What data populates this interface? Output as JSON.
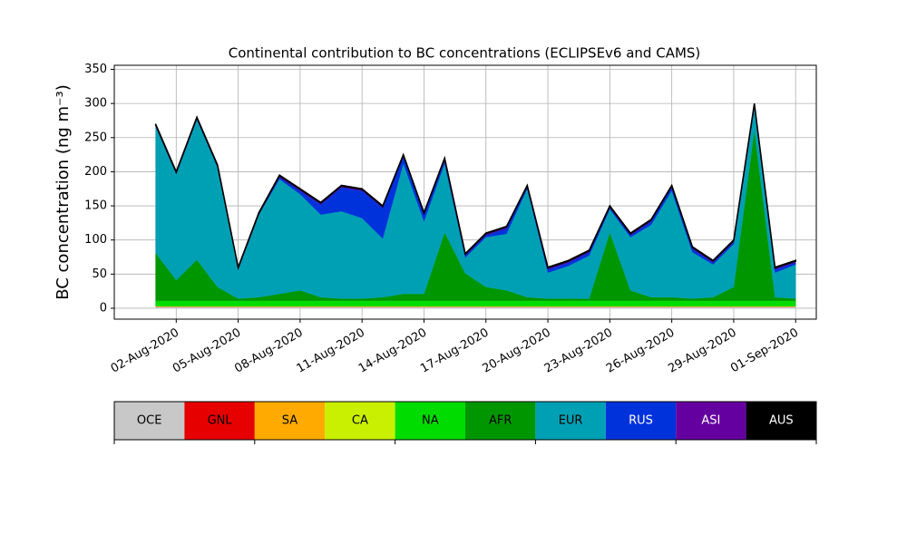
{
  "chart_data": {
    "type": "stacked_area",
    "title": "Continental contribution to BC concentrations (ECLIPSEv6 and CAMS)",
    "y_label": "BC concentration (ng m⁻³)",
    "x": [
      "2020-08-01",
      "2020-08-02",
      "2020-08-03",
      "2020-08-04",
      "2020-08-05",
      "2020-08-06",
      "2020-08-07",
      "2020-08-08",
      "2020-08-09",
      "2020-08-10",
      "2020-08-11",
      "2020-08-12",
      "2020-08-13",
      "2020-08-14",
      "2020-08-15",
      "2020-08-16",
      "2020-08-17",
      "2020-08-18",
      "2020-08-19",
      "2020-08-20",
      "2020-08-21",
      "2020-08-22",
      "2020-08-23",
      "2020-08-24",
      "2020-08-25",
      "2020-08-26",
      "2020-08-27",
      "2020-08-28",
      "2020-08-29",
      "2020-08-30",
      "2020-08-31",
      "2020-09-01"
    ],
    "xlim": [
      "2020-07-30",
      "2020-09-02"
    ],
    "xticks": [
      {
        "value": "2020-08-02",
        "label": "02-Aug-2020"
      },
      {
        "value": "2020-08-05",
        "label": "05-Aug-2020"
      },
      {
        "value": "2020-08-08",
        "label": "08-Aug-2020"
      },
      {
        "value": "2020-08-11",
        "label": "11-Aug-2020"
      },
      {
        "value": "2020-08-14",
        "label": "14-Aug-2020"
      },
      {
        "value": "2020-08-17",
        "label": "17-Aug-2020"
      },
      {
        "value": "2020-08-20",
        "label": "20-Aug-2020"
      },
      {
        "value": "2020-08-23",
        "label": "23-Aug-2020"
      },
      {
        "value": "2020-08-26",
        "label": "26-Aug-2020"
      },
      {
        "value": "2020-08-29",
        "label": "29-Aug-2020"
      },
      {
        "value": "2020-09-01",
        "label": "01-Sep-2020"
      }
    ],
    "ylim": [
      -16,
      356
    ],
    "yticks": [
      0,
      50,
      100,
      150,
      200,
      250,
      300,
      350
    ],
    "grid": true,
    "series": [
      {
        "name": "OCE",
        "color": "#c8c8c8",
        "values": [
          2,
          2,
          2,
          2,
          2,
          2,
          2,
          2,
          2,
          2,
          2,
          2,
          2,
          2,
          2,
          2,
          2,
          2,
          2,
          2,
          2,
          2,
          2,
          2,
          2,
          2,
          2,
          2,
          2,
          2,
          2,
          2
        ]
      },
      {
        "name": "GNL",
        "color": "#e60000",
        "values": [
          0.3,
          0.3,
          0.3,
          0.3,
          0.3,
          0.3,
          0.3,
          0.3,
          0.3,
          0.3,
          0.3,
          0.3,
          0.3,
          0.3,
          0.3,
          0.3,
          0.3,
          0.3,
          0.3,
          0.3,
          0.3,
          0.3,
          0.3,
          0.3,
          0.3,
          0.3,
          0.3,
          0.3,
          0.3,
          0.3,
          0.3,
          0.3
        ]
      },
      {
        "name": "SA",
        "color": "#ffaa00",
        "values": [
          0.3,
          0.3,
          0.3,
          0.3,
          0.3,
          0.3,
          0.3,
          0.3,
          0.3,
          0.3,
          0.3,
          0.3,
          0.3,
          0.3,
          0.3,
          0.3,
          0.3,
          0.3,
          0.3,
          0.3,
          0.3,
          0.3,
          0.3,
          0.3,
          0.3,
          0.3,
          0.3,
          0.3,
          0.3,
          0.3,
          0.3,
          0.3
        ]
      },
      {
        "name": "CA",
        "color": "#c8f000",
        "values": [
          0.5,
          0.5,
          0.5,
          0.5,
          0.5,
          0.5,
          0.5,
          0.5,
          0.5,
          0.5,
          0.5,
          0.5,
          0.5,
          0.5,
          0.5,
          0.5,
          0.5,
          0.5,
          0.5,
          0.5,
          0.5,
          0.5,
          0.5,
          0.5,
          0.5,
          0.5,
          0.5,
          0.5,
          0.5,
          0.5,
          0.5,
          0.5
        ]
      },
      {
        "name": "NA",
        "color": "#00dc00",
        "values": [
          8,
          8,
          8,
          8,
          8,
          8,
          8,
          8,
          8,
          8,
          8,
          8,
          8,
          8,
          8,
          8,
          8,
          8,
          8,
          8,
          8,
          8,
          8,
          8,
          8,
          8,
          8,
          8,
          8,
          8,
          8,
          8
        ]
      },
      {
        "name": "AFR",
        "color": "#009600",
        "values": [
          70,
          30,
          60,
          20,
          3,
          5,
          10,
          15,
          5,
          3,
          3,
          5,
          10,
          10,
          100,
          40,
          20,
          15,
          5,
          3,
          3,
          3,
          100,
          15,
          5,
          5,
          3,
          5,
          20,
          250,
          5,
          3
        ]
      },
      {
        "name": "EUR",
        "color": "#00a0b4",
        "values": [
          186,
          156,
          206,
          176,
          43,
          121,
          168,
          141,
          121,
          128,
          118,
          86,
          191,
          106,
          101,
          23,
          73,
          83,
          159,
          38,
          48,
          63,
          34,
          78,
          106,
          156,
          68,
          48,
          63,
          33,
          36,
          50
        ]
      },
      {
        "name": "RUS",
        "color": "#0032dc",
        "values": [
          0,
          0,
          0,
          0,
          0,
          0,
          3,
          5,
          15,
          35,
          40,
          45,
          10,
          10,
          5,
          3,
          3,
          8,
          2,
          5,
          5,
          5,
          2,
          3,
          5,
          5,
          5,
          3,
          3,
          3,
          5,
          3
        ]
      },
      {
        "name": "ASI",
        "color": "#6400a0",
        "values": [
          2,
          2,
          2,
          2,
          2,
          2,
          2,
          2,
          2,
          2,
          2,
          2,
          2,
          2,
          2,
          2,
          2,
          2,
          2,
          2,
          2,
          2,
          2,
          2,
          2,
          2,
          2,
          2,
          2,
          2,
          2,
          2
        ]
      },
      {
        "name": "AUS",
        "color": "#000000",
        "values": [
          1,
          1,
          1,
          1,
          1,
          1,
          1,
          1,
          1,
          1,
          1,
          1,
          1,
          1,
          1,
          1,
          1,
          1,
          1,
          1,
          1,
          1,
          1,
          1,
          1,
          1,
          1,
          1,
          1,
          1,
          1,
          1
        ]
      }
    ]
  }
}
